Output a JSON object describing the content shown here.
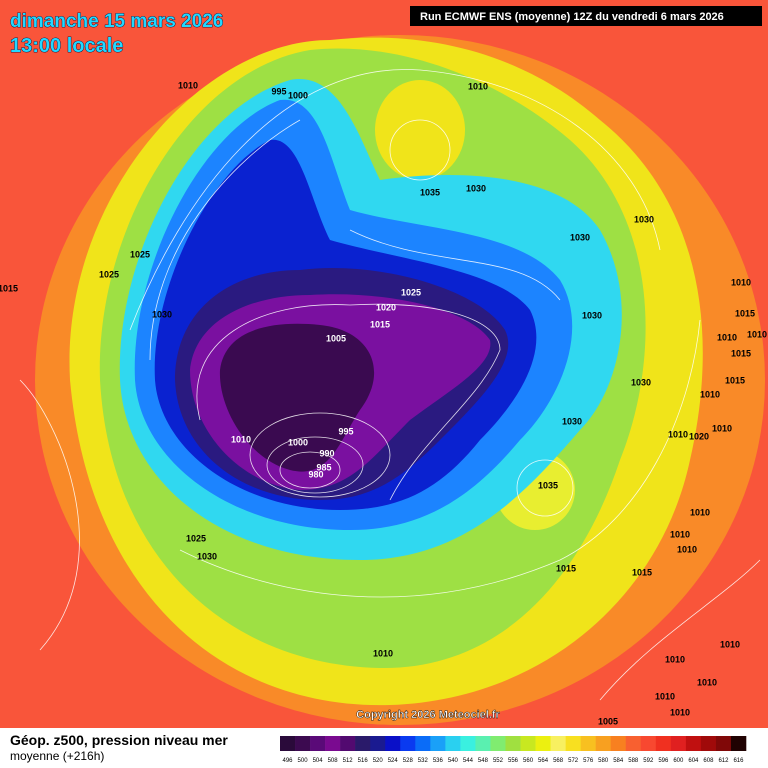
{
  "header": {
    "date": "dimanche 15 mars 2026",
    "time": "13:00 locale",
    "run": "Run ECMWF ENS (moyenne) 12Z du vendredi 6 mars 2026"
  },
  "map": {
    "isobar_labels": [
      1010,
      995,
      1000,
      1010,
      1035,
      1030,
      1030,
      1025,
      1025,
      1030,
      1015,
      1030,
      1025,
      1020,
      1015,
      1030,
      1005,
      1010,
      1015,
      1010,
      1015,
      1010,
      1030,
      1015,
      1010,
      995,
      1010,
      1000,
      990,
      985,
      980,
      1030,
      1010,
      1020,
      1010,
      1035,
      1010,
      1025,
      1030,
      1010,
      1010,
      1015,
      1015,
      1010,
      1010,
      1010,
      1010,
      1010,
      1010,
      1005
    ],
    "copyright": "Copyright 2026 Meteociel.fr"
  },
  "legend": {
    "title": "Géop. z500, pression niveau mer",
    "subtitle": "moyenne  (+216h)",
    "scale": [
      496,
      500,
      504,
      508,
      512,
      516,
      520,
      524,
      528,
      532,
      536,
      540,
      544,
      548,
      552,
      556,
      560,
      564,
      568,
      572,
      576,
      580,
      584,
      588,
      592,
      596,
      600,
      604,
      608,
      612,
      616
    ],
    "colors": [
      "#2a0a3a",
      "#3c0a50",
      "#5a0a78",
      "#7a0a90",
      "#520a70",
      "#2a1a6a",
      "#1a1a90",
      "#0a10c8",
      "#0a3af0",
      "#0a6cf8",
      "#1aa0f8",
      "#2ad0f0",
      "#3af0e0",
      "#5af0b0",
      "#80ec70",
      "#a0e040",
      "#c8e820",
      "#ecf010",
      "#f8f060",
      "#f8e020",
      "#f8c020",
      "#f8a020",
      "#f88020",
      "#f86030",
      "#f84830",
      "#f03020",
      "#e02020",
      "#c01010",
      "#a00a0a",
      "#800808",
      "#200202"
    ]
  }
}
